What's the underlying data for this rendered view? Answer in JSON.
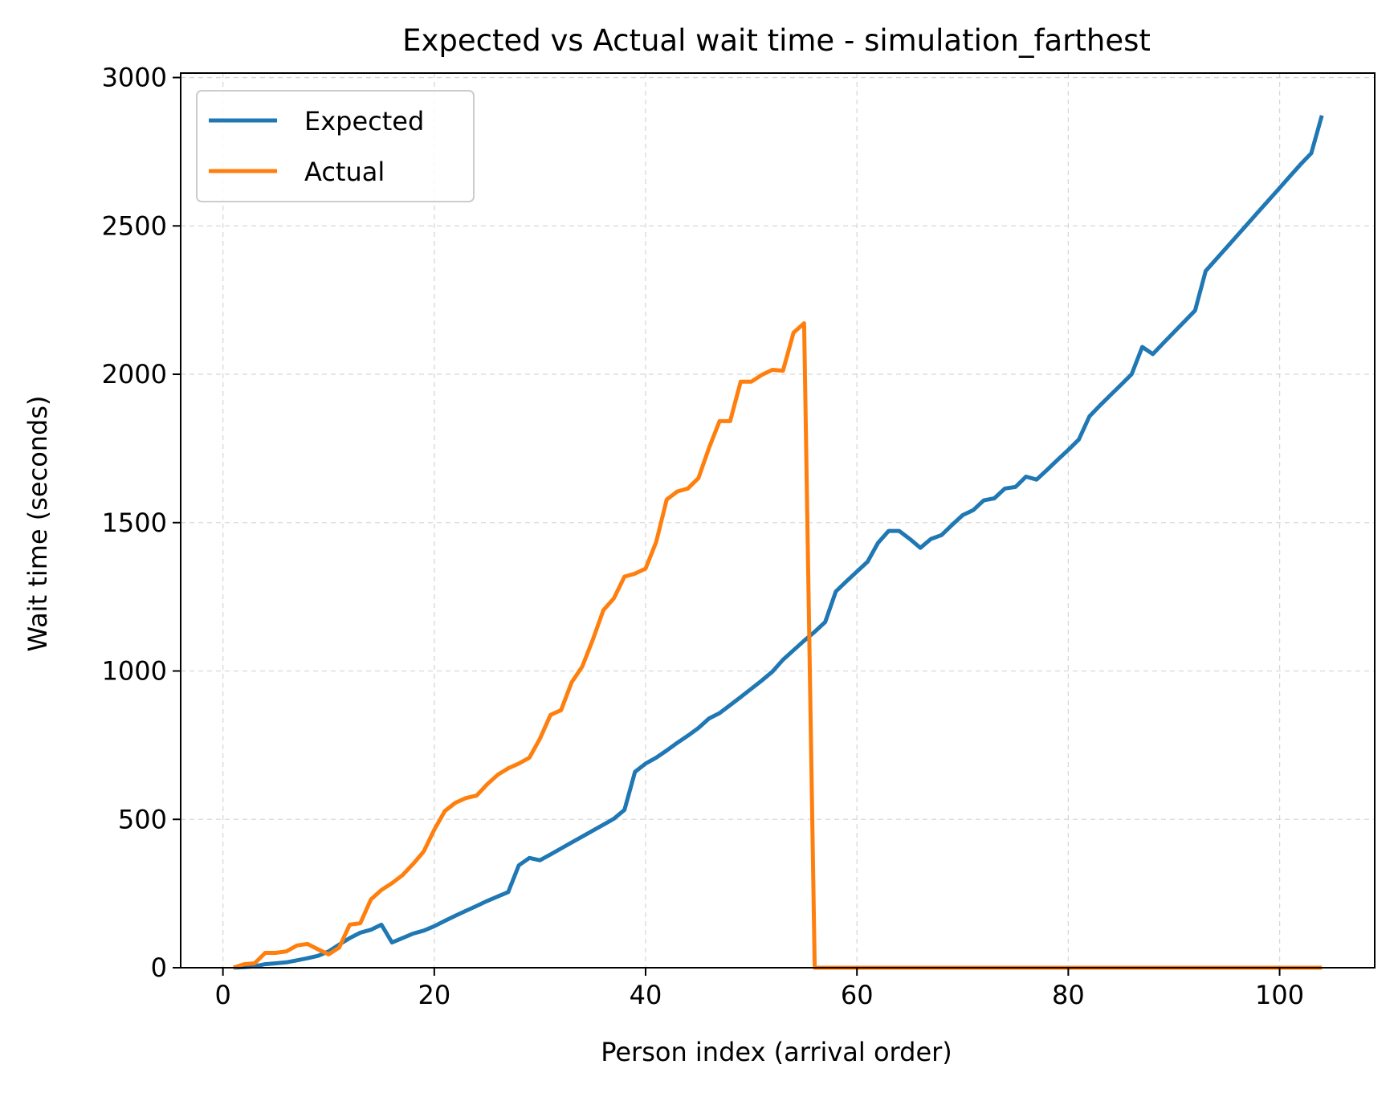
{
  "chart_data": {
    "type": "line",
    "title": "Expected vs Actual wait time - simulation_farthest",
    "xlabel": "Person index (arrival order)",
    "ylabel": "Wait time (seconds)",
    "xlim": [
      -4,
      109
    ],
    "ylim": [
      0,
      3015
    ],
    "xticks": [
      0,
      20,
      40,
      60,
      80,
      100
    ],
    "xtick_labels": [
      "0",
      "20",
      "40",
      "60",
      "80",
      "100"
    ],
    "yticks": [
      0,
      500,
      1000,
      1500,
      2000,
      2500,
      3000
    ],
    "ytick_labels": [
      "0",
      "500",
      "1000",
      "1500",
      "2000",
      "2500",
      "3000"
    ],
    "grid": true,
    "legend_position": "top-left",
    "series": [
      {
        "name": "Expected",
        "color": "#1f77b4",
        "points": [
          [
            1,
            0
          ],
          [
            2,
            2
          ],
          [
            3,
            5
          ],
          [
            4,
            12
          ],
          [
            5,
            15
          ],
          [
            6,
            18
          ],
          [
            7,
            25
          ],
          [
            8,
            32
          ],
          [
            9,
            40
          ],
          [
            10,
            55
          ],
          [
            11,
            78
          ],
          [
            12,
            100
          ],
          [
            13,
            118
          ],
          [
            14,
            128
          ],
          [
            15,
            145
          ],
          [
            16,
            85
          ],
          [
            17,
            100
          ],
          [
            18,
            115
          ],
          [
            19,
            125
          ],
          [
            20,
            140
          ],
          [
            21,
            158
          ],
          [
            22,
            175
          ],
          [
            23,
            192
          ],
          [
            24,
            208
          ],
          [
            25,
            225
          ],
          [
            26,
            240
          ],
          [
            27,
            255
          ],
          [
            28,
            345
          ],
          [
            29,
            370
          ],
          [
            30,
            362
          ],
          [
            31,
            382
          ],
          [
            32,
            402
          ],
          [
            33,
            422
          ],
          [
            34,
            442
          ],
          [
            35,
            462
          ],
          [
            36,
            482
          ],
          [
            37,
            502
          ],
          [
            38,
            532
          ],
          [
            39,
            660
          ],
          [
            40,
            688
          ],
          [
            41,
            708
          ],
          [
            42,
            732
          ],
          [
            43,
            758
          ],
          [
            44,
            782
          ],
          [
            45,
            808
          ],
          [
            46,
            840
          ],
          [
            47,
            858
          ],
          [
            48,
            885
          ],
          [
            49,
            912
          ],
          [
            50,
            940
          ],
          [
            51,
            968
          ],
          [
            52,
            998
          ],
          [
            53,
            1038
          ],
          [
            54,
            1070
          ],
          [
            55,
            1102
          ],
          [
            56,
            1132
          ],
          [
            57,
            1165
          ],
          [
            58,
            1268
          ],
          [
            59,
            1302
          ],
          [
            60,
            1335
          ],
          [
            61,
            1368
          ],
          [
            62,
            1432
          ],
          [
            63,
            1472
          ],
          [
            64,
            1472
          ],
          [
            65,
            1445
          ],
          [
            66,
            1415
          ],
          [
            67,
            1445
          ],
          [
            68,
            1458
          ],
          [
            69,
            1492
          ],
          [
            70,
            1525
          ],
          [
            71,
            1542
          ],
          [
            72,
            1575
          ],
          [
            73,
            1582
          ],
          [
            74,
            1615
          ],
          [
            75,
            1620
          ],
          [
            76,
            1655
          ],
          [
            77,
            1645
          ],
          [
            78,
            1678
          ],
          [
            79,
            1712
          ],
          [
            80,
            1745
          ],
          [
            81,
            1780
          ],
          [
            82,
            1858
          ],
          [
            83,
            1895
          ],
          [
            84,
            1930
          ],
          [
            85,
            1965
          ],
          [
            86,
            2000
          ],
          [
            87,
            2092
          ],
          [
            88,
            2068
          ],
          [
            89,
            2105
          ],
          [
            90,
            2142
          ],
          [
            91,
            2178
          ],
          [
            92,
            2215
          ],
          [
            93,
            2348
          ],
          [
            94,
            2388
          ],
          [
            95,
            2428
          ],
          [
            96,
            2468
          ],
          [
            97,
            2508
          ],
          [
            98,
            2548
          ],
          [
            99,
            2588
          ],
          [
            100,
            2628
          ],
          [
            101,
            2668
          ],
          [
            102,
            2708
          ],
          [
            103,
            2745
          ],
          [
            104,
            2872
          ]
        ]
      },
      {
        "name": "Actual",
        "color": "#ff7f0e",
        "points": [
          [
            1,
            0
          ],
          [
            2,
            12
          ],
          [
            3,
            15
          ],
          [
            4,
            50
          ],
          [
            5,
            50
          ],
          [
            6,
            55
          ],
          [
            7,
            75
          ],
          [
            8,
            80
          ],
          [
            9,
            62
          ],
          [
            10,
            45
          ],
          [
            11,
            68
          ],
          [
            12,
            145
          ],
          [
            13,
            150
          ],
          [
            14,
            230
          ],
          [
            15,
            262
          ],
          [
            16,
            285
          ],
          [
            17,
            312
          ],
          [
            18,
            350
          ],
          [
            19,
            392
          ],
          [
            20,
            465
          ],
          [
            21,
            528
          ],
          [
            22,
            556
          ],
          [
            23,
            572
          ],
          [
            24,
            580
          ],
          [
            25,
            618
          ],
          [
            26,
            650
          ],
          [
            27,
            672
          ],
          [
            28,
            688
          ],
          [
            29,
            708
          ],
          [
            30,
            772
          ],
          [
            31,
            852
          ],
          [
            32,
            868
          ],
          [
            33,
            962
          ],
          [
            34,
            1015
          ],
          [
            35,
            1105
          ],
          [
            36,
            1205
          ],
          [
            37,
            1245
          ],
          [
            38,
            1318
          ],
          [
            39,
            1328
          ],
          [
            40,
            1345
          ],
          [
            41,
            1435
          ],
          [
            42,
            1578
          ],
          [
            43,
            1605
          ],
          [
            44,
            1615
          ],
          [
            45,
            1650
          ],
          [
            46,
            1752
          ],
          [
            47,
            1842
          ],
          [
            48,
            1842
          ],
          [
            49,
            1975
          ],
          [
            50,
            1975
          ],
          [
            51,
            1998
          ],
          [
            52,
            2015
          ],
          [
            53,
            2012
          ],
          [
            54,
            2140
          ],
          [
            55,
            2172
          ],
          [
            56,
            0
          ],
          [
            57,
            0
          ],
          [
            58,
            0
          ],
          [
            59,
            0
          ],
          [
            60,
            0
          ],
          [
            61,
            0
          ],
          [
            62,
            0
          ],
          [
            63,
            0
          ],
          [
            64,
            0
          ],
          [
            65,
            0
          ],
          [
            66,
            0
          ],
          [
            67,
            0
          ],
          [
            68,
            0
          ],
          [
            69,
            0
          ],
          [
            70,
            0
          ],
          [
            71,
            0
          ],
          [
            72,
            0
          ],
          [
            73,
            0
          ],
          [
            74,
            0
          ],
          [
            75,
            0
          ],
          [
            76,
            0
          ],
          [
            77,
            0
          ],
          [
            78,
            0
          ],
          [
            79,
            0
          ],
          [
            80,
            0
          ],
          [
            81,
            0
          ],
          [
            82,
            0
          ],
          [
            83,
            0
          ],
          [
            84,
            0
          ],
          [
            85,
            0
          ],
          [
            86,
            0
          ],
          [
            87,
            0
          ],
          [
            88,
            0
          ],
          [
            89,
            0
          ],
          [
            90,
            0
          ],
          [
            91,
            0
          ],
          [
            92,
            0
          ],
          [
            93,
            0
          ],
          [
            94,
            0
          ],
          [
            95,
            0
          ],
          [
            96,
            0
          ],
          [
            97,
            0
          ],
          [
            98,
            0
          ],
          [
            99,
            0
          ],
          [
            100,
            0
          ],
          [
            101,
            0
          ],
          [
            102,
            0
          ],
          [
            103,
            0
          ],
          [
            104,
            0
          ]
        ]
      }
    ]
  }
}
